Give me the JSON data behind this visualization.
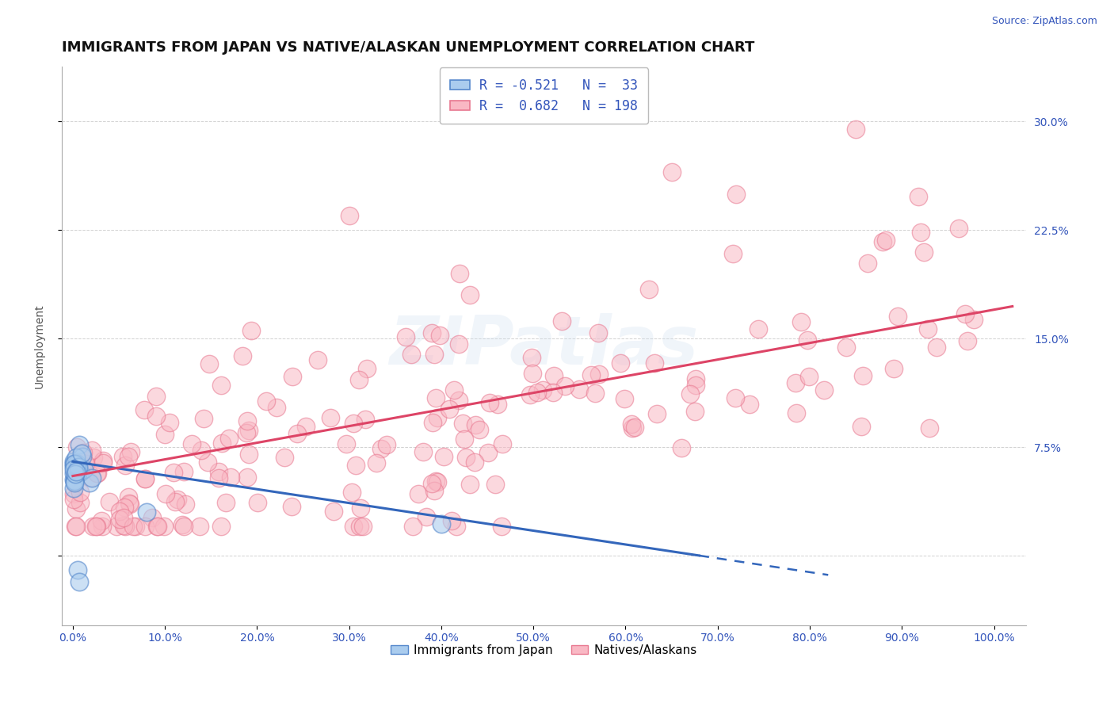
{
  "title": "IMMIGRANTS FROM JAPAN VS NATIVE/ALASKAN UNEMPLOYMENT CORRELATION CHART",
  "source_text": "Source: ZipAtlas.com",
  "ylabel": "Unemployment",
  "blue_face_color": "#aaccee",
  "blue_edge_color": "#5588cc",
  "pink_face_color": "#f9b8c4",
  "pink_edge_color": "#e87890",
  "blue_line_color": "#3366bb",
  "pink_line_color": "#dd4466",
  "legend_blue_r": "-0.521",
  "legend_blue_n": "33",
  "legend_pink_r": "0.682",
  "legend_pink_n": "198",
  "legend_text_color": "#3355bb",
  "watermark": "ZIPatlas",
  "title_fontsize": 13,
  "tick_fontsize": 10,
  "label_color": "#3355bb",
  "title_color": "#111111",
  "grid_color": "#cccccc",
  "source_color": "#3355bb"
}
